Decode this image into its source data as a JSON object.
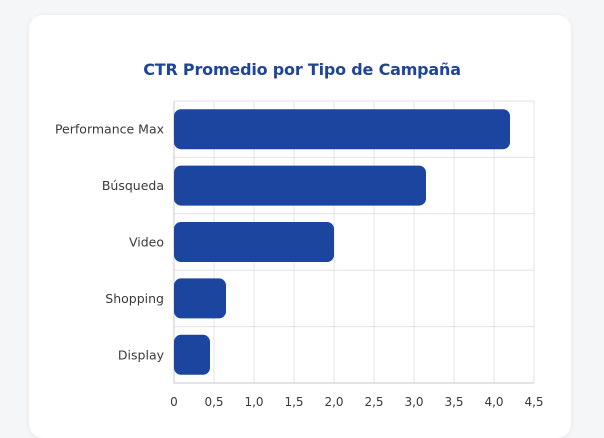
{
  "chart_data": {
    "type": "bar",
    "orientation": "horizontal",
    "title": "CTR Promedio por Tipo de Campaña",
    "categories": [
      "Performance Max",
      "Búsqueda",
      "Video",
      "Shopping",
      "Display"
    ],
    "values": [
      4.2,
      3.15,
      2.0,
      0.65,
      0.45
    ],
    "xlim": [
      0,
      4.5
    ],
    "ticks": [
      0,
      0.5,
      1.0,
      1.5,
      2.0,
      2.5,
      3.0,
      3.5,
      4.0,
      4.5
    ],
    "tick_labels": [
      "0",
      "0,5",
      "1,0",
      "1,5",
      "2,0",
      "2,5",
      "3,0",
      "3,5",
      "4,0",
      "4,5"
    ],
    "xlabel": "",
    "ylabel": "",
    "grid": true,
    "colors": {
      "bar": "#1c45a0",
      "title": "#1f4597",
      "grid": "#e3e3e3",
      "axis": "#c8c8c8"
    }
  }
}
